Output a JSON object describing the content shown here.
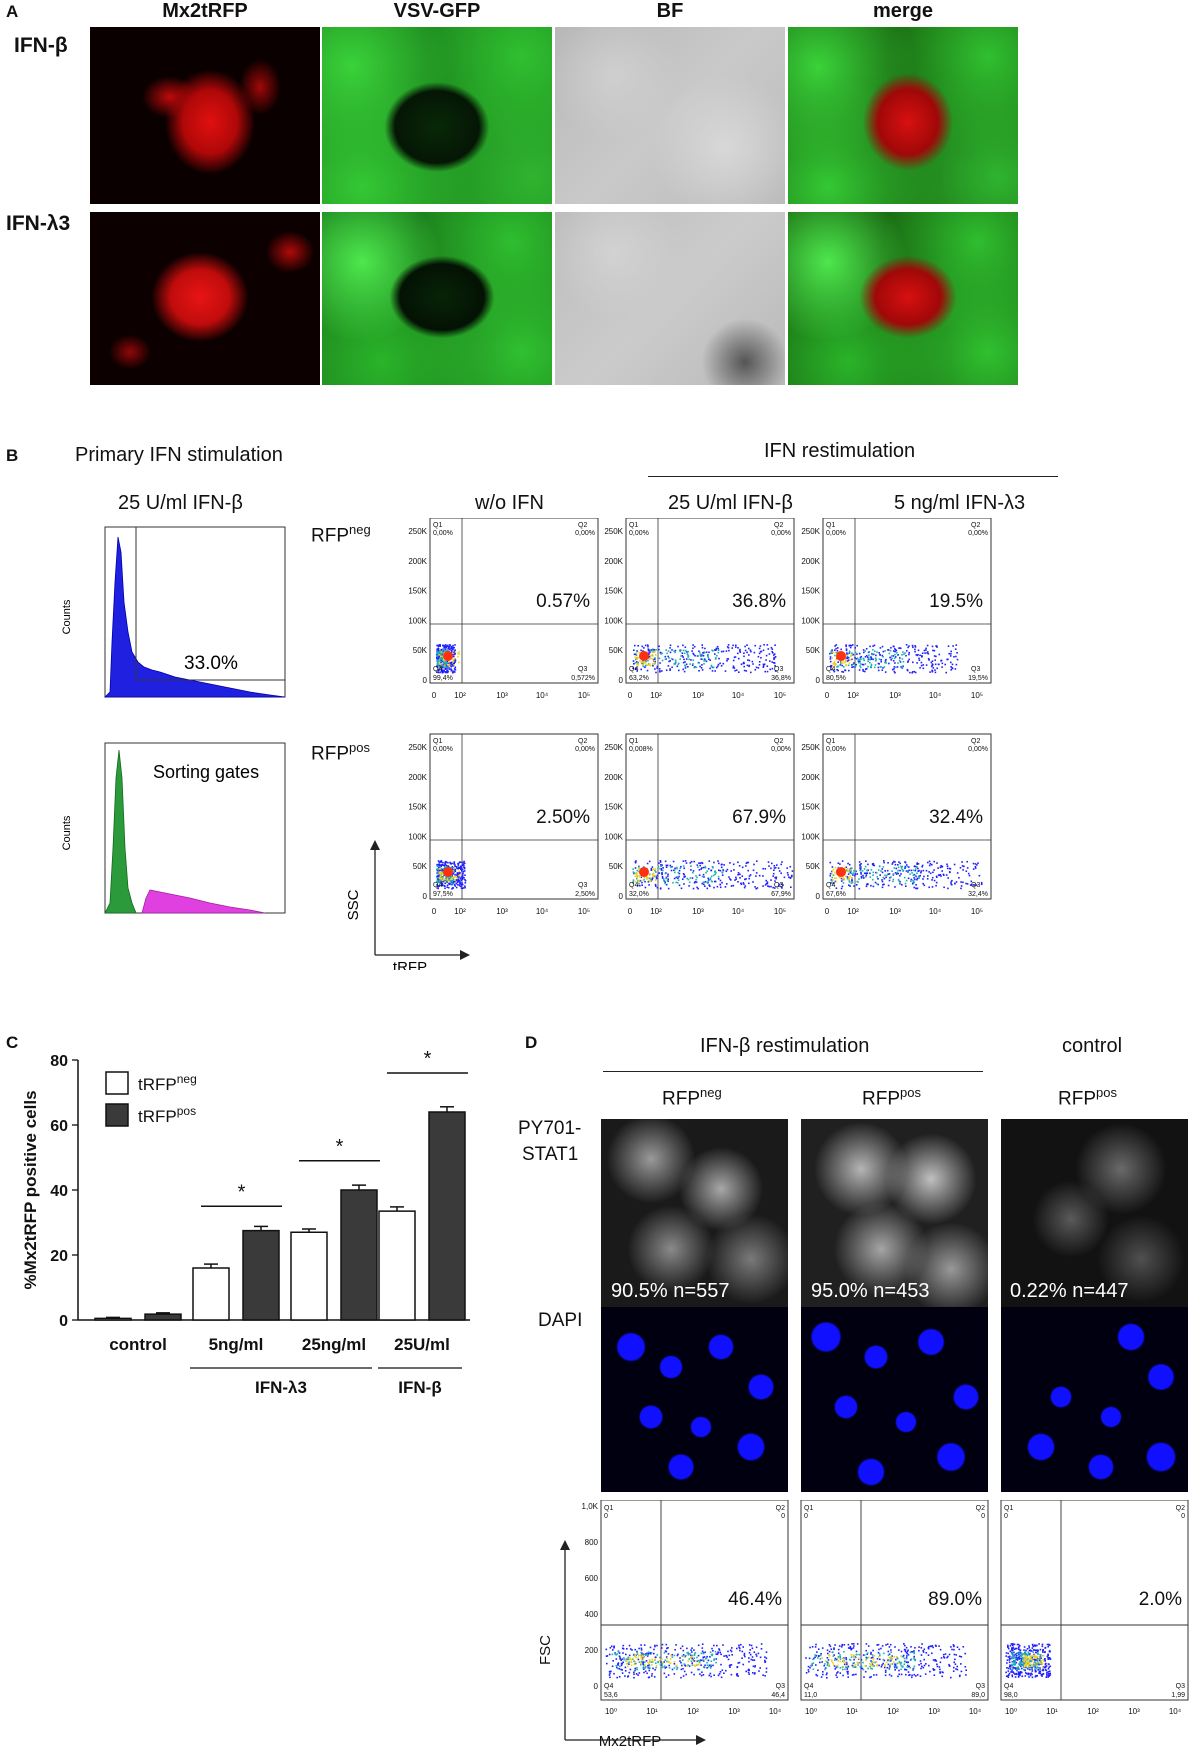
{
  "panelA": {
    "letter": "A",
    "columns": [
      "Mx2tRFP",
      "VSV-GFP",
      "BF",
      "merge"
    ],
    "rows": [
      "IFN-β",
      "IFN-λ3"
    ]
  },
  "panelB": {
    "letter": "B",
    "primary_title": "Primary IFN stimulation",
    "primary_cond": "25 U/ml IFN-β",
    "restim_title": "IFN restimulation",
    "cols": [
      "w/o IFN",
      "25 U/ml IFN-β",
      "5 ng/ml IFN-λ3"
    ],
    "row_neg": "RFP",
    "row_neg_sup": "neg",
    "row_pos": "RFP",
    "row_pos_sup": "pos",
    "hist_ylabel": "Counts",
    "hist_pct": "33.0%",
    "sorting_label": "Sorting gates",
    "xaxis": "tRFP",
    "yaxis": "SSC",
    "pct_neg": [
      "0.57%",
      "36.8%",
      "19.5%"
    ],
    "pct_pos": [
      "2.50%",
      "67.9%",
      "32.4%"
    ],
    "q_neg": [
      {
        "q1": "0,00%",
        "q2": "0,00%",
        "q3": "0,572%",
        "q4": "99,4%"
      },
      {
        "q1": "0,00%",
        "q2": "0,00%",
        "q3": "36,8%",
        "q4": "63,2%"
      },
      {
        "q1": "0,00%",
        "q2": "0,00%",
        "q3": "19,5%",
        "q4": "80,5%"
      }
    ],
    "q_pos": [
      {
        "q1": "0,00%",
        "q2": "0,00%",
        "q3": "2,50%",
        "q4": "97,5%"
      },
      {
        "q1": "0,008%",
        "q2": "0,00%",
        "q3": "67,9%",
        "q4": "32,0%"
      },
      {
        "q1": "0,00%",
        "q2": "0,00%",
        "q3": "32,4%",
        "q4": "67,6%"
      }
    ],
    "yticks": [
      "0",
      "50K",
      "100K",
      "150K",
      "200K",
      "250K"
    ]
  },
  "panelC": {
    "letter": "C",
    "legend_neg": "tRFP",
    "legend_neg_sup": "neg",
    "legend_pos": "tRFP",
    "legend_pos_sup": "pos",
    "group_labels": [
      "control",
      "5ng/ml",
      "25ng/ml",
      "25U/ml"
    ],
    "super_labels": [
      "IFN-λ3",
      "IFN-β"
    ],
    "sig": "*"
  },
  "chart_data": {
    "type": "bar",
    "categories": [
      "control",
      "5ng/ml",
      "25ng/ml",
      "25U/ml"
    ],
    "series": [
      {
        "name": "tRFPneg",
        "values": [
          0.5,
          16,
          27,
          33.5
        ],
        "errors": [
          0.3,
          1.2,
          1.0,
          1.3
        ],
        "color": "#ffffff"
      },
      {
        "name": "tRFPpos",
        "values": [
          1.8,
          27.5,
          40,
          64
        ],
        "errors": [
          0.4,
          1.3,
          1.5,
          1.6
        ],
        "color": "#3a3a3a"
      }
    ],
    "ylabel": "%Mx2tRFP positive cells",
    "ylim": [
      0,
      80
    ],
    "yticks": [
      0,
      20,
      40,
      60,
      80
    ]
  },
  "panelD": {
    "letter": "D",
    "title1": "IFN-β restimulation",
    "title2": "control",
    "cols": [
      {
        "label": "RFP",
        "sup": "neg"
      },
      {
        "label": "RFP",
        "sup": "pos"
      },
      {
        "label": "RFP",
        "sup": "pos"
      }
    ],
    "row1a": "PY701-",
    "row1b": "STAT1",
    "row2": "DAPI",
    "stats": [
      "90.5% n=557",
      "95.0% n=453",
      "0.22% n=447"
    ],
    "flow_pct": [
      "46.4%",
      "89.0%",
      "2.0%"
    ],
    "q": [
      {
        "q1": "0",
        "q2": "0",
        "q3": "46,4",
        "q4": "53,6"
      },
      {
        "q1": "0",
        "q2": "0",
        "q3": "89,0",
        "q4": "11,0"
      },
      {
        "q1": "0",
        "q2": "0",
        "q3": "1,99",
        "q4": "98,0"
      }
    ],
    "yticks": [
      "0",
      "200",
      "400",
      "600",
      "800",
      "1,0K"
    ],
    "xaxis": "Mx2tRFP",
    "yaxis": "FSC"
  }
}
